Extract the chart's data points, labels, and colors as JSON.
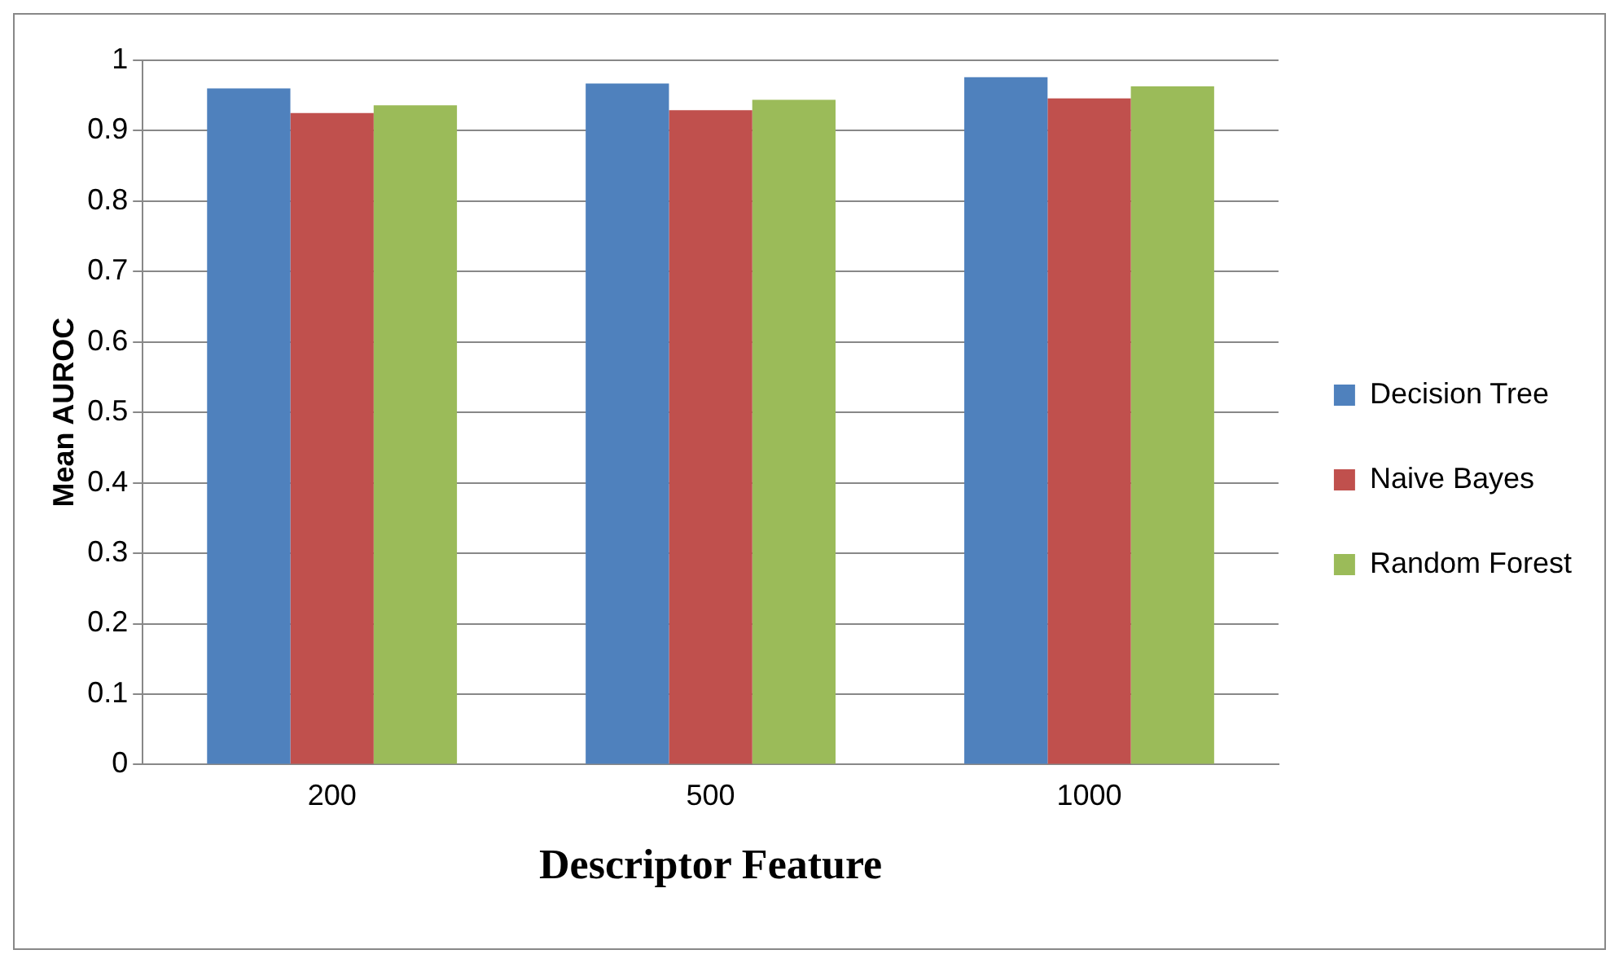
{
  "chart_data": {
    "type": "bar",
    "xlabel": "Descriptor Feature",
    "ylabel": "Mean AUROC",
    "categories": [
      "200",
      "500",
      "1000"
    ],
    "series": [
      {
        "name": "Decision Tree",
        "color": "#4f81bd",
        "values": [
          0.96,
          0.967,
          0.976
        ]
      },
      {
        "name": "Naive Bayes",
        "color": "#c0504d",
        "values": [
          0.925,
          0.929,
          0.946
        ]
      },
      {
        "name": "Random Forest",
        "color": "#9bbb59",
        "values": [
          0.936,
          0.944,
          0.963
        ]
      }
    ],
    "ylim": [
      0,
      1
    ],
    "yticks": [
      0,
      0.1,
      0.2,
      0.3,
      0.4,
      0.5,
      0.6,
      0.7,
      0.8,
      0.9,
      1
    ],
    "grid": "y",
    "legend": "right"
  }
}
